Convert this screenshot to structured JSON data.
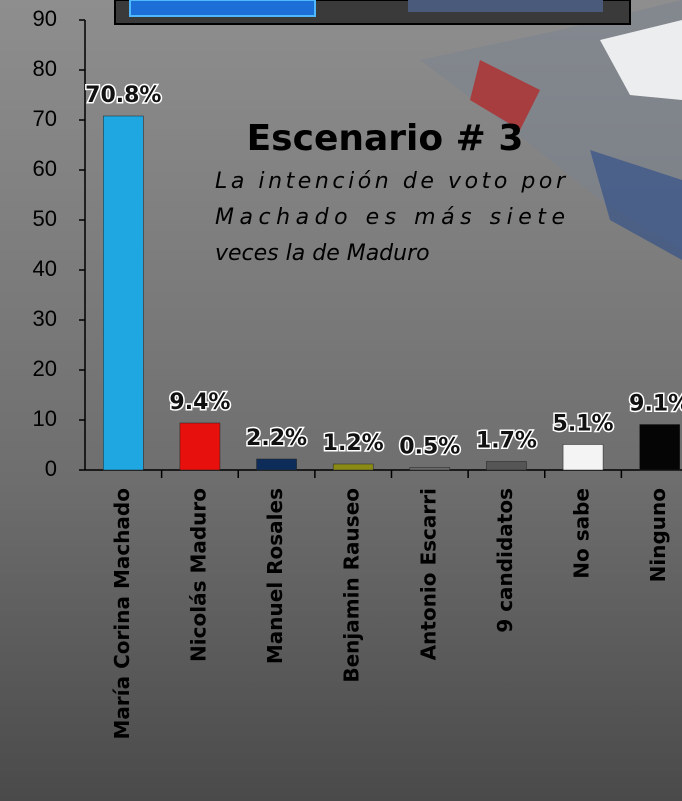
{
  "chart_data": {
    "type": "bar",
    "title": "Escenario # 3",
    "annotation": [
      "La intención de voto por",
      "Machado es más siete",
      "veces la de Maduro"
    ],
    "categories": [
      "María Corina Machado",
      "Nicolás Maduro",
      "Manuel Rosales",
      "Benjamin Rauseo",
      "Antonio Escarri",
      "9 candidatos",
      "No sabe",
      "Ninguno"
    ],
    "values": [
      70.8,
      9.4,
      2.2,
      1.2,
      0.5,
      1.7,
      5.1,
      9.1
    ],
    "value_labels": [
      "70.8%",
      "9.4%",
      "2.2%",
      "1.2%",
      "0.5%",
      "1.7%",
      "5.1%",
      "9.1%"
    ],
    "colors": [
      "#1ea7e1",
      "#e8100c",
      "#0d2c5a",
      "#8a8a16",
      "#6a6a6a",
      "#555555",
      "#f4f4f4",
      "#050505"
    ],
    "ylim": [
      0,
      90
    ],
    "yticks": [
      0,
      10,
      20,
      30,
      40,
      50,
      60,
      70,
      80,
      90
    ]
  }
}
